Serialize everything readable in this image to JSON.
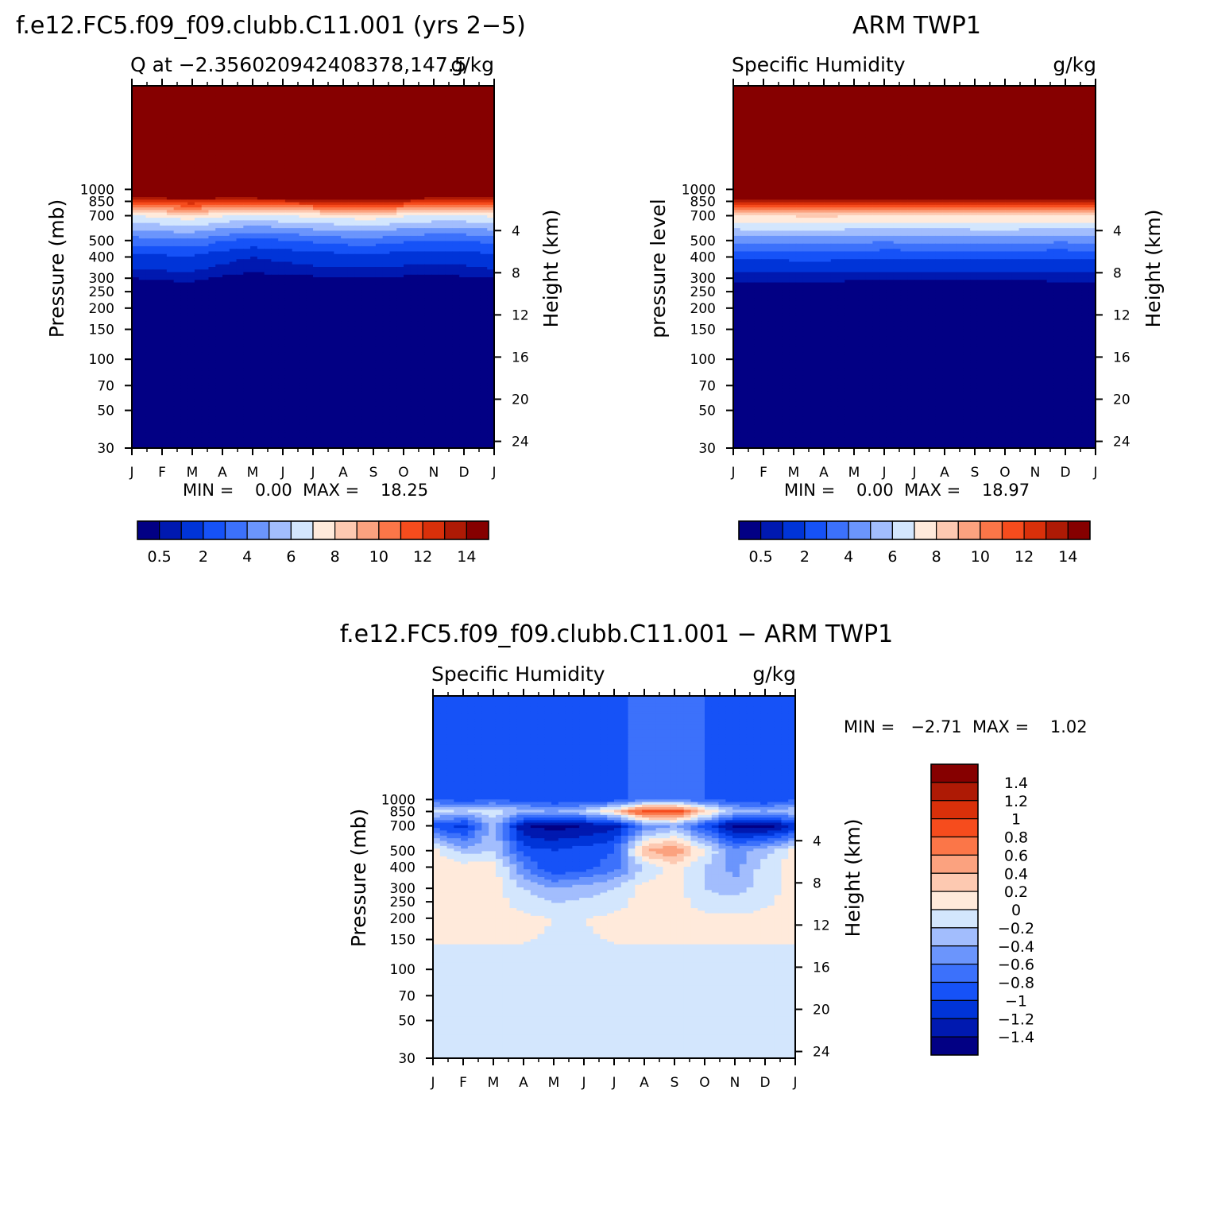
{
  "panels": [
    {
      "id": "model",
      "header_left": "f.e12.FC5.f09_f09.clubb.C11.001 (yrs 2−5)",
      "subtitle_left": "Q at −2.356020942408378,147.5",
      "subtitle_right": "g/kg",
      "ylabel_left": "Pressure (mb)",
      "ylabel_right": "Height (km)",
      "minmax": "MIN =    0.00  MAX =    18.25"
    },
    {
      "id": "obs",
      "header_center": "ARM TWP1",
      "subtitle_left": "Specific Humidity",
      "subtitle_right": "g/kg",
      "ylabel_left": "pressure level",
      "ylabel_right": "Height (km)",
      "minmax": "MIN =    0.00  MAX =    18.97"
    },
    {
      "id": "diff",
      "header_center": "f.e12.FC5.f09_f09.clubb.C11.001 − ARM TWP1",
      "subtitle_left": "Specific Humidity",
      "subtitle_right": "g/kg",
      "ylabel_left": "Pressure (mb)",
      "ylabel_right": "Height (km)",
      "minmax": "MIN =   −2.71  MAX =    1.02"
    }
  ],
  "axes": {
    "months": [
      "J",
      "F",
      "M",
      "A",
      "M",
      "J",
      "J",
      "A",
      "S",
      "O",
      "N",
      "D",
      "J"
    ],
    "pressure_ticks": [
      "30",
      "50",
      "70",
      "100",
      "150",
      "200",
      "250",
      "300",
      "400",
      "500",
      "700",
      "850",
      "1000"
    ],
    "height_ticks": [
      "24",
      "20",
      "16",
      "12",
      "8",
      "4"
    ]
  },
  "colorbars": {
    "abs": {
      "colors": [
        "#020084",
        "#0019b0",
        "#0034d8",
        "#1652f7",
        "#3c71fb",
        "#6b95fc",
        "#a2bdfd",
        "#d3e6fd",
        "#ffeadb",
        "#fdc9b1",
        "#fba27f",
        "#fb7648",
        "#f64c1d",
        "#d9300a",
        "#ae1a05",
        "#860000"
      ],
      "labels": [
        "0.5",
        "2",
        "4",
        "6",
        "8",
        "10",
        "12",
        "14"
      ]
    },
    "diff": {
      "colors": [
        "#860000",
        "#ae1a05",
        "#d9300a",
        "#f64c1d",
        "#fb7648",
        "#fba27f",
        "#fdc9b1",
        "#ffeadb",
        "#d3e6fd",
        "#a2bdfd",
        "#6b95fc",
        "#3c71fb",
        "#1652f7",
        "#0034d8",
        "#0019b0",
        "#020084"
      ],
      "labels": [
        "1.4",
        "1.2",
        "1",
        "0.8",
        "0.6",
        "0.4",
        "0.2",
        "0",
        "−0.2",
        "−0.4",
        "−0.6",
        "−0.8",
        "−1",
        "−1.2",
        "−1.4"
      ]
    }
  },
  "chart_data": [
    {
      "type": "heatmap",
      "title": "Q at −2.356020942408378,147.5",
      "units": "g/kg",
      "xlabel": "",
      "ylabel": "Pressure (mb)",
      "y2label": "Height (km)",
      "x": [
        "J",
        "F",
        "M",
        "A",
        "M",
        "J",
        "J",
        "A",
        "S",
        "O",
        "N",
        "D",
        "J"
      ],
      "y_pressure_mb": [
        1000,
        850,
        700,
        500,
        400,
        300
      ],
      "values": [
        [
          18.0,
          18.0,
          18.1,
          18.1,
          18.0,
          18.2,
          18.2,
          18.3,
          18.3,
          18.1,
          18.0,
          18.0,
          18.0
        ],
        [
          12.3,
          12.6,
          12.8,
          12.6,
          12.6,
          12.8,
          12.9,
          13.1,
          13.3,
          12.9,
          12.5,
          12.4,
          12.3
        ],
        [
          6.9,
          7.3,
          7.6,
          7.1,
          6.5,
          7.0,
          7.2,
          7.5,
          7.6,
          7.1,
          6.9,
          6.9,
          7.2
        ],
        [
          3.5,
          3.7,
          3.8,
          3.1,
          2.7,
          2.9,
          3.2,
          3.5,
          3.6,
          3.2,
          3.0,
          3.0,
          3.4
        ],
        [
          1.6,
          1.8,
          1.9,
          1.3,
          1.0,
          1.2,
          1.4,
          1.6,
          1.6,
          1.4,
          1.3,
          1.4,
          1.7
        ],
        [
          0.5,
          0.55,
          0.6,
          0.4,
          0.3,
          0.35,
          0.4,
          0.45,
          0.45,
          0.4,
          0.35,
          0.4,
          0.5
        ]
      ],
      "min": 0.0,
      "max": 18.25
    },
    {
      "type": "heatmap",
      "title": "Specific Humidity",
      "units": "g/kg",
      "xlabel": "",
      "ylabel": "pressure level",
      "y2label": "Height (km)",
      "x": [
        "J",
        "F",
        "M",
        "A",
        "M",
        "J",
        "J",
        "A",
        "S",
        "O",
        "N",
        "D",
        "J"
      ],
      "y_pressure_mb": [
        1000,
        850,
        700,
        500,
        400,
        300
      ],
      "values": [
        [
          18.6,
          18.7,
          18.8,
          18.9,
          18.9,
          18.8,
          18.8,
          18.8,
          18.8,
          18.9,
          18.8,
          18.7,
          18.6
        ],
        [
          12.9,
          13.0,
          13.1,
          13.2,
          13.1,
          13.0,
          13.0,
          13.0,
          13.1,
          13.1,
          13.0,
          12.9,
          12.9
        ],
        [
          7.9,
          8.0,
          8.1,
          8.2,
          8.0,
          7.9,
          7.9,
          8.0,
          8.0,
          8.1,
          8.0,
          7.9,
          7.9
        ],
        [
          4.4,
          4.5,
          4.5,
          4.5,
          4.3,
          4.2,
          4.3,
          4.3,
          4.4,
          4.4,
          4.3,
          4.2,
          4.4
        ],
        [
          2.2,
          2.2,
          2.3,
          2.3,
          2.2,
          2.1,
          2.1,
          2.2,
          2.2,
          2.2,
          2.1,
          2.1,
          2.2
        ],
        [
          0.6,
          0.6,
          0.6,
          0.6,
          0.55,
          0.55,
          0.55,
          0.55,
          0.55,
          0.55,
          0.55,
          0.6,
          0.6
        ]
      ],
      "min": 0.0,
      "max": 18.97
    },
    {
      "type": "heatmap",
      "title": "Specific Humidity",
      "units": "g/kg",
      "xlabel": "",
      "ylabel": "Pressure (mb)",
      "y2label": "Height (km)",
      "x": [
        "J",
        "F",
        "M",
        "A",
        "M",
        "J",
        "J",
        "A",
        "S",
        "O",
        "N",
        "D",
        "J"
      ],
      "y_pressure_mb": [
        1000,
        850,
        700,
        500,
        400,
        300,
        200,
        100
      ],
      "values": [
        [
          -0.8,
          -0.9,
          -0.8,
          -0.9,
          -1.0,
          -1.0,
          -0.9,
          -0.7,
          -0.6,
          -0.8,
          -0.9,
          -1.0,
          -0.8
        ],
        [
          -0.1,
          -0.2,
          -0.1,
          -0.3,
          -0.4,
          -0.2,
          0.2,
          1.0,
          1.0,
          0.3,
          -0.3,
          -0.4,
          -0.2
        ],
        [
          -0.9,
          -1.1,
          -0.3,
          -1.4,
          -1.5,
          -1.4,
          -1.3,
          -0.6,
          -0.4,
          -0.9,
          -1.5,
          -1.5,
          -1.2
        ],
        [
          0.1,
          -0.3,
          -0.2,
          -0.9,
          -1.0,
          -0.9,
          -0.8,
          0.4,
          0.6,
          0.0,
          -0.5,
          -0.3,
          0.1
        ],
        [
          0.1,
          0.1,
          0.1,
          -0.6,
          -1.0,
          -0.9,
          -0.7,
          -0.2,
          0.1,
          -0.2,
          -0.5,
          -0.1,
          0.1
        ],
        [
          0.1,
          0.1,
          0.1,
          -0.2,
          -0.4,
          -0.3,
          -0.2,
          0.1,
          0.1,
          -0.2,
          -0.3,
          -0.1,
          0.1
        ],
        [
          0.05,
          0.05,
          0.05,
          0.05,
          0.0,
          0.0,
          0.05,
          0.05,
          0.05,
          0.05,
          0.05,
          0.05,
          0.05
        ],
        [
          -0.05,
          -0.05,
          -0.05,
          -0.05,
          -0.05,
          -0.05,
          -0.05,
          -0.05,
          -0.05,
          -0.05,
          -0.05,
          -0.05,
          -0.05
        ]
      ],
      "min": -2.71,
      "max": 1.02
    }
  ]
}
